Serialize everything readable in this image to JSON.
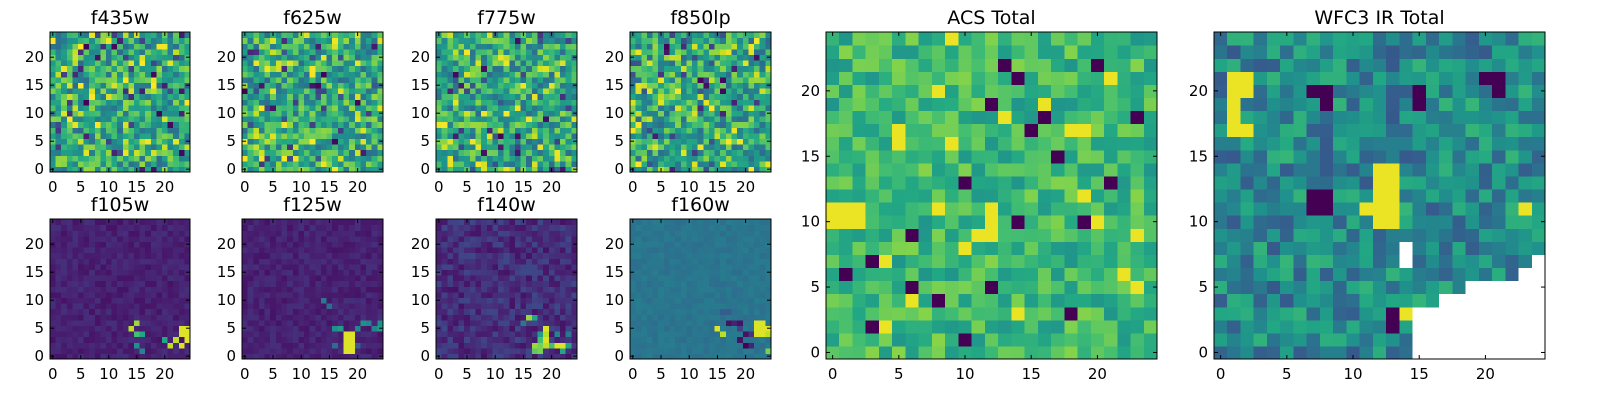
{
  "figure": {
    "description_free": true
  },
  "chart_data": [
    {
      "type": "heatmap",
      "title": "f435w",
      "xticks": [
        0,
        5,
        10,
        15,
        20
      ],
      "yticks": [
        0,
        5,
        10,
        15,
        20
      ],
      "xlim": [
        -0.5,
        24.5
      ],
      "ylim": [
        -0.5,
        24.5
      ],
      "grid_size": 25,
      "colormap": "viridis",
      "pattern": "noise"
    },
    {
      "type": "heatmap",
      "title": "f625w",
      "xticks": [
        0,
        5,
        10,
        15,
        20
      ],
      "yticks": [
        0,
        5,
        10,
        15,
        20
      ],
      "xlim": [
        -0.5,
        24.5
      ],
      "ylim": [
        -0.5,
        24.5
      ],
      "grid_size": 25,
      "colormap": "viridis",
      "pattern": "noise"
    },
    {
      "type": "heatmap",
      "title": "f775w",
      "xticks": [
        0,
        5,
        10,
        15,
        20
      ],
      "yticks": [
        0,
        5,
        10,
        15,
        20
      ],
      "xlim": [
        -0.5,
        24.5
      ],
      "ylim": [
        -0.5,
        24.5
      ],
      "grid_size": 25,
      "colormap": "viridis",
      "pattern": "noise"
    },
    {
      "type": "heatmap",
      "title": "f850lp",
      "xticks": [
        0,
        5,
        10,
        15,
        20
      ],
      "yticks": [
        0,
        5,
        10,
        15,
        20
      ],
      "xlim": [
        -0.5,
        24.5
      ],
      "ylim": [
        -0.5,
        24.5
      ],
      "grid_size": 25,
      "colormap": "viridis",
      "pattern": "noise"
    },
    {
      "type": "heatmap",
      "title": "f105w",
      "xticks": [
        0,
        5,
        10,
        15,
        20
      ],
      "yticks": [
        0,
        5,
        10,
        15,
        20
      ],
      "xlim": [
        -0.5,
        24.5
      ],
      "ylim": [
        -0.5,
        24.5
      ],
      "grid_size": 25,
      "colormap": "viridis",
      "pattern": "dark",
      "bright_cells": [
        [
          15,
          6,
          0.85
        ],
        [
          14,
          5,
          0.9
        ],
        [
          15,
          4,
          0.7
        ],
        [
          16,
          4,
          0.6
        ],
        [
          23,
          5,
          0.95
        ],
        [
          24,
          5,
          0.95
        ],
        [
          23,
          4,
          0.95
        ],
        [
          24,
          4,
          0.95
        ],
        [
          22,
          3,
          0.9
        ],
        [
          21,
          2,
          0.9
        ],
        [
          23,
          2,
          0.95
        ],
        [
          24,
          3,
          0.95
        ],
        [
          20,
          3,
          0.6
        ],
        [
          15,
          2,
          0.5
        ],
        [
          16,
          1,
          0.45
        ]
      ]
    },
    {
      "type": "heatmap",
      "title": "f125w",
      "xticks": [
        0,
        5,
        10,
        15,
        20
      ],
      "yticks": [
        0,
        5,
        10,
        15,
        20
      ],
      "xlim": [
        -0.5,
        24.5
      ],
      "ylim": [
        -0.5,
        24.5
      ],
      "grid_size": 25,
      "colormap": "viridis",
      "pattern": "dark",
      "bright_cells": [
        [
          18,
          4,
          0.95
        ],
        [
          19,
          4,
          0.95
        ],
        [
          18,
          3,
          0.95
        ],
        [
          19,
          3,
          0.95
        ],
        [
          18,
          2,
          0.95
        ],
        [
          19,
          2,
          0.95
        ],
        [
          18,
          1,
          0.95
        ],
        [
          19,
          1,
          0.95
        ],
        [
          17,
          5,
          0.55
        ],
        [
          16,
          5,
          0.5
        ],
        [
          20,
          5,
          0.45
        ],
        [
          21,
          6,
          0.5
        ],
        [
          22,
          6,
          0.45
        ],
        [
          23,
          5,
          0.45
        ],
        [
          24,
          5,
          0.55
        ],
        [
          24,
          6,
          0.5
        ],
        [
          14,
          10,
          0.4
        ],
        [
          15,
          9,
          0.35
        ],
        [
          16,
          2,
          0.35
        ],
        [
          20,
          2,
          0.3
        ]
      ]
    },
    {
      "type": "heatmap",
      "title": "f140w",
      "xticks": [
        0,
        5,
        10,
        15,
        20
      ],
      "yticks": [
        0,
        5,
        10,
        15,
        20
      ],
      "xlim": [
        -0.5,
        24.5
      ],
      "ylim": [
        -0.5,
        24.5
      ],
      "grid_size": 25,
      "colormap": "viridis",
      "pattern": "dark_noisy",
      "bright_cells": [
        [
          19,
          5,
          0.95
        ],
        [
          19,
          4,
          0.9
        ],
        [
          19,
          3,
          0.95
        ],
        [
          18,
          3,
          0.7
        ],
        [
          17,
          2,
          0.85
        ],
        [
          18,
          2,
          0.8
        ],
        [
          19,
          2,
          0.9
        ],
        [
          20,
          2,
          0.7
        ],
        [
          21,
          2,
          0.95
        ],
        [
          22,
          2,
          0.95
        ],
        [
          23,
          2,
          0.6
        ],
        [
          17,
          1,
          0.75
        ],
        [
          18,
          1,
          0.8
        ],
        [
          22,
          1,
          0.6
        ],
        [
          16,
          7,
          0.85
        ],
        [
          17,
          7,
          0.6
        ],
        [
          18,
          4,
          0.55
        ],
        [
          21,
          4,
          0.45
        ],
        [
          15,
          6,
          0.4
        ],
        [
          23,
          4,
          0.4
        ]
      ]
    },
    {
      "type": "heatmap",
      "title": "f160w",
      "xticks": [
        0,
        5,
        10,
        15,
        20
      ],
      "yticks": [
        0,
        5,
        10,
        15,
        20
      ],
      "xlim": [
        -0.5,
        24.5
      ],
      "ylim": [
        -0.5,
        24.5
      ],
      "grid_size": 25,
      "colormap": "viridis",
      "pattern": "teal",
      "bright_cells": [
        [
          15,
          5,
          0.95
        ],
        [
          16,
          4,
          0.9
        ],
        [
          18,
          6,
          0.1
        ],
        [
          19,
          6,
          0.05
        ],
        [
          19,
          5,
          0.2
        ],
        [
          20,
          4,
          0.05
        ],
        [
          21,
          4,
          0.15
        ],
        [
          22,
          6,
          0.95
        ],
        [
          23,
          6,
          0.95
        ],
        [
          22,
          5,
          0.95
        ],
        [
          23,
          5,
          0.95
        ],
        [
          24,
          5,
          0.95
        ],
        [
          22,
          4,
          0.95
        ],
        [
          23,
          4,
          0.95
        ],
        [
          24,
          4,
          0.9
        ],
        [
          20,
          2,
          0.0
        ],
        [
          21,
          2,
          0.1
        ],
        [
          19,
          3,
          0.05
        ],
        [
          24,
          1,
          0.8
        ],
        [
          17,
          6,
          0.05
        ],
        [
          16,
          8,
          0.3
        ],
        [
          14,
          6,
          0.35
        ],
        [
          17,
          8,
          0.3
        ]
      ]
    },
    {
      "type": "heatmap",
      "title": "ACS Total",
      "xticks": [
        0,
        5,
        10,
        15,
        20
      ],
      "yticks": [
        0,
        5,
        10,
        15,
        20
      ],
      "xlim": [
        -0.5,
        24.5
      ],
      "ylim": [
        -0.5,
        24.5
      ],
      "grid_size": 25,
      "colormap": "viridis",
      "pattern": "acs",
      "dark_cells": [
        [
          14,
          21
        ],
        [
          12,
          19
        ],
        [
          16,
          18
        ],
        [
          20,
          22
        ],
        [
          1,
          6
        ],
        [
          3,
          7
        ],
        [
          8,
          4
        ],
        [
          12,
          5
        ],
        [
          6,
          5
        ],
        [
          10,
          13
        ],
        [
          14,
          10
        ],
        [
          15,
          17
        ],
        [
          3,
          2
        ],
        [
          19,
          10
        ],
        [
          23,
          18
        ],
        [
          18,
          3
        ],
        [
          10,
          1
        ],
        [
          13,
          22
        ],
        [
          21,
          13
        ],
        [
          6,
          9
        ],
        [
          17,
          15
        ]
      ],
      "yellow_cells": [
        [
          0,
          11
        ],
        [
          1,
          11
        ],
        [
          0,
          10
        ],
        [
          1,
          10
        ],
        [
          2,
          11
        ],
        [
          2,
          10
        ],
        [
          8,
          20
        ],
        [
          8,
          11
        ],
        [
          13,
          18
        ],
        [
          10,
          8
        ],
        [
          11,
          9
        ],
        [
          12,
          9
        ],
        [
          12,
          10
        ],
        [
          12,
          11
        ],
        [
          23,
          5
        ],
        [
          22,
          6
        ],
        [
          9,
          16
        ],
        [
          5,
          16
        ],
        [
          5,
          17
        ],
        [
          18,
          17
        ],
        [
          19,
          17
        ],
        [
          16,
          19
        ],
        [
          20,
          10
        ],
        [
          19,
          12
        ],
        [
          14,
          3
        ],
        [
          6,
          4
        ],
        [
          4,
          2
        ],
        [
          9,
          24
        ],
        [
          21,
          21
        ],
        [
          23,
          9
        ],
        [
          4,
          7
        ]
      ]
    },
    {
      "type": "heatmap",
      "title": "WFC3 IR Total",
      "xticks": [
        0,
        5,
        10,
        15,
        20
      ],
      "yticks": [
        0,
        5,
        10,
        15,
        20
      ],
      "xlim": [
        -0.5,
        24.5
      ],
      "ylim": [
        -0.5,
        24.5
      ],
      "grid_size": 25,
      "colormap": "viridis",
      "pattern": "wfc3",
      "dark_cells": [
        [
          7,
          20
        ],
        [
          8,
          20
        ],
        [
          8,
          19
        ],
        [
          7,
          12
        ],
        [
          8,
          12
        ],
        [
          7,
          11
        ],
        [
          8,
          11
        ],
        [
          20,
          21
        ],
        [
          21,
          21
        ],
        [
          13,
          3
        ],
        [
          13,
          2
        ],
        [
          21,
          20
        ],
        [
          15,
          19
        ],
        [
          15,
          20
        ]
      ],
      "yellow_cells": [
        [
          12,
          14
        ],
        [
          13,
          14
        ],
        [
          12,
          13
        ],
        [
          13,
          13
        ],
        [
          12,
          12
        ],
        [
          13,
          12
        ],
        [
          12,
          11
        ],
        [
          13,
          11
        ],
        [
          12,
          10
        ],
        [
          13,
          10
        ],
        [
          1,
          21
        ],
        [
          2,
          21
        ],
        [
          1,
          20
        ],
        [
          2,
          20
        ],
        [
          1,
          19
        ],
        [
          1,
          18
        ],
        [
          1,
          17
        ],
        [
          2,
          17
        ],
        [
          14,
          3
        ],
        [
          11,
          11
        ],
        [
          23,
          11
        ]
      ],
      "blank_cells": [
        [
          14,
          7
        ],
        [
          14,
          8
        ]
      ],
      "blank_region": {
        "x_from": 15,
        "y_to_by_x": {
          "15": 3,
          "16": 3,
          "17": 4,
          "18": 4,
          "19": 5,
          "20": 5,
          "21": 5,
          "22": 5,
          "23": 6,
          "24": 7
        }
      }
    }
  ]
}
